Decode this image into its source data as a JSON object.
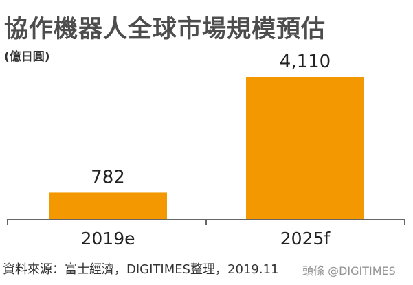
{
  "chart_data": {
    "type": "bar",
    "title": "協作機器人全球市場規模預估",
    "unit": "(億日圓)",
    "categories": [
      "2019e",
      "2025f"
    ],
    "values": [
      782,
      4110
    ],
    "value_labels": [
      "782",
      "4,110"
    ],
    "colors": {
      "bar": "#f39800",
      "axis": "#666666"
    },
    "grid": false,
    "legend": "none"
  },
  "source": "資料來源：富士經濟，DIGITIMES整理，2019.11",
  "watermark": "頭條 @DIGITIMES"
}
